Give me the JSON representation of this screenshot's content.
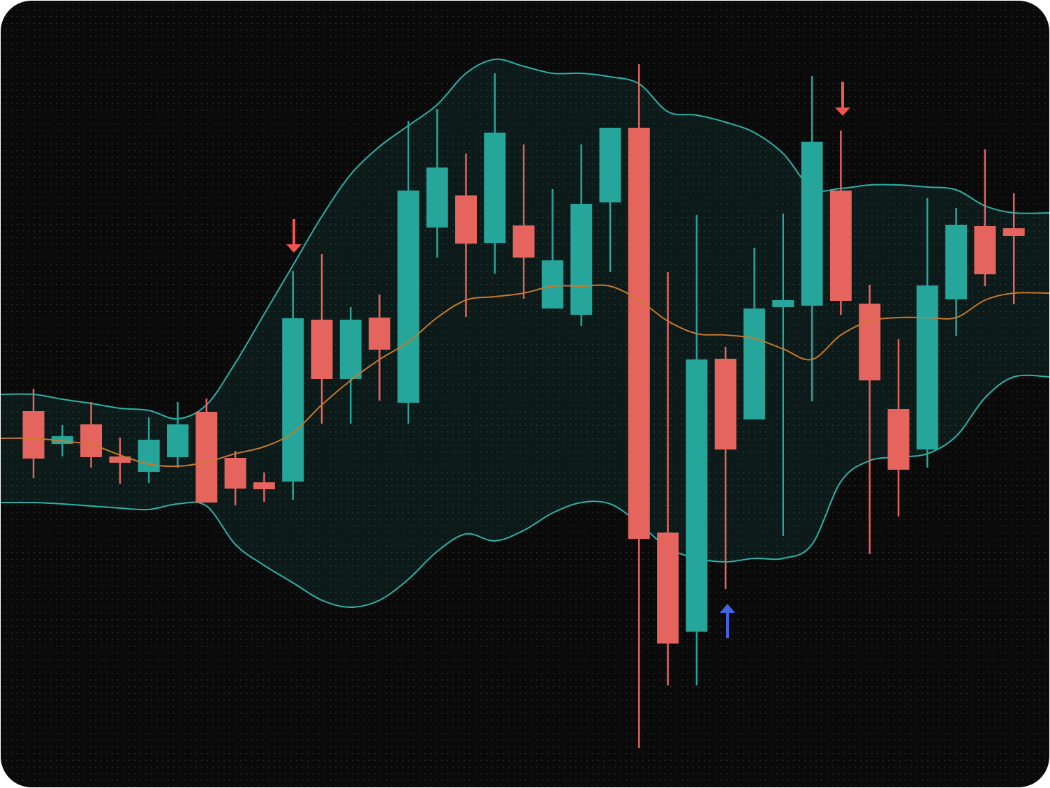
{
  "chart_data": {
    "type": "candlestick",
    "open": [
      54.0,
      49.3,
      52.1,
      47.5,
      45.3,
      47.4,
      53.9,
      47.3,
      43.8,
      43.9,
      67.1,
      58.6,
      67.4,
      55.2,
      80.3,
      84.9,
      78.1,
      80.6,
      68.7,
      67.8,
      83.9,
      94.6,
      36.6,
      22.4,
      61.5,
      52.8,
      68.9,
      69.1,
      85.6,
      69.4,
      54.3,
      48.5,
      70.0,
      80.5,
      80.2
    ],
    "high": [
      57.2,
      52.0,
      55.3,
      50.2,
      53.1,
      55.3,
      55.8,
      48.3,
      45.2,
      74.1,
      76.5,
      68.9,
      70.7,
      95.6,
      97.3,
      90.9,
      102.4,
      92.2,
      85.8,
      92.2,
      94.6,
      103.7,
      73.9,
      82.1,
      63.2,
      77.4,
      82.3,
      102.0,
      94.2,
      72.1,
      64.3,
      84.5,
      83.1,
      91.5,
      85.2
    ],
    "low": [
      44.4,
      47.5,
      45.9,
      43.6,
      43.7,
      45.9,
      40.9,
      40.5,
      41.0,
      41.3,
      52.2,
      52.2,
      55.5,
      52.2,
      76.0,
      67.5,
      73.7,
      70.1,
      68.7,
      66.2,
      73.9,
      5.7,
      14.7,
      14.7,
      28.5,
      52.8,
      36.1,
      55.4,
      67.8,
      33.5,
      38.9,
      45.9,
      64.8,
      71.9,
      69.3
    ],
    "close": [
      47.2,
      50.4,
      47.4,
      46.6,
      49.9,
      52.1,
      40.9,
      42.9,
      42.8,
      67.3,
      58.6,
      67.1,
      62.8,
      85.6,
      88.9,
      78.0,
      93.9,
      76.0,
      75.6,
      83.7,
      94.6,
      35.7,
      20.7,
      61.4,
      48.5,
      68.7,
      69.9,
      92.6,
      69.8,
      58.4,
      45.6,
      72.0,
      80.7,
      73.6,
      79.1
    ],
    "up_color": "#26a69a",
    "down_color": "#e5645e",
    "ylim": [
      0,
      112.9
    ],
    "bands": {
      "upper": [
        56.4,
        55.7,
        55.1,
        54.4,
        54.1,
        52.9,
        54.9,
        60.9,
        67.9,
        74.9,
        81.9,
        87.9,
        91.9,
        94.9,
        97.9,
        102.4,
        104.4,
        103.4,
        102.4,
        102.4,
        101.9,
        100.9,
        96.9,
        96.4,
        95.4,
        93.9,
        90.9,
        85.9,
        85.9,
        86.4,
        86.4,
        86.1,
        85.7,
        83.4,
        82.4
      ],
      "middle": [
        50.1,
        49.7,
        49.2,
        47.7,
        46.4,
        46.1,
        46.7,
        47.9,
        48.9,
        50.9,
        54.9,
        58.4,
        61.4,
        63.9,
        67.4,
        69.9,
        70.4,
        70.9,
        71.9,
        71.9,
        71.9,
        69.9,
        66.9,
        65.1,
        64.9,
        64.4,
        62.9,
        61.4,
        64.9,
        66.9,
        67.4,
        67.4,
        67.4,
        69.9,
        70.9
      ],
      "lower": [
        40.9,
        40.7,
        40.4,
        40.1,
        39.9,
        40.7,
        40.4,
        34.9,
        31.9,
        29.4,
        26.9,
        25.9,
        26.9,
        29.9,
        33.9,
        36.4,
        35.4,
        36.9,
        39.4,
        40.9,
        40.7,
        37.9,
        34.4,
        32.9,
        32.4,
        32.9,
        32.9,
        34.9,
        43.9,
        46.9,
        47.4,
        47.9,
        50.4,
        55.9,
        58.9
      ],
      "band_color": "#2bb3a8",
      "middle_color": "#c8782c"
    }
  }
}
